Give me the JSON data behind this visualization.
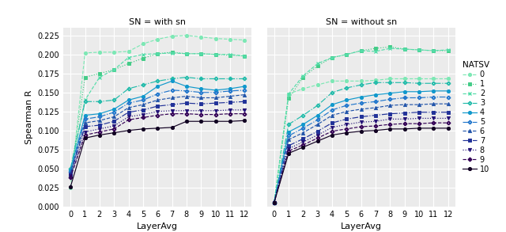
{
  "x": [
    0,
    1,
    2,
    3,
    4,
    5,
    6,
    7,
    8,
    9,
    10,
    11,
    12
  ],
  "title_left": "SN = with sn",
  "title_right": "SN = without sn",
  "xlabel": "LayerAvg",
  "ylabel": "Spearman R",
  "legend_title": "NATSV",
  "ylim": [
    0.0,
    0.235
  ],
  "yticks": [
    0.0,
    0.025,
    0.05,
    0.075,
    0.1,
    0.125,
    0.15,
    0.175,
    0.2,
    0.225
  ],
  "colors": [
    "#7de8b8",
    "#44cc88",
    "#66ddaa",
    "#22bbaa",
    "#1199cc",
    "#2277bb",
    "#2255aa",
    "#223399",
    "#221177",
    "#220055",
    "#110022"
  ],
  "markers": [
    "o",
    "s",
    "x",
    "P",
    "o",
    "P",
    "^",
    "s",
    "v",
    "P",
    "o"
  ],
  "linestyles": [
    "--",
    ":",
    "--",
    "-.",
    "-",
    "-.",
    "--",
    "-.",
    ":",
    "--",
    "-"
  ],
  "with_sn": [
    [
      0.025,
      0.202,
      0.203,
      0.203,
      0.204,
      0.214,
      0.22,
      0.224,
      0.225,
      0.223,
      0.221,
      0.22,
      0.219
    ],
    [
      0.04,
      0.17,
      0.175,
      0.18,
      0.188,
      0.195,
      0.201,
      0.203,
      0.201,
      0.201,
      0.2,
      0.199,
      0.198
    ],
    [
      0.048,
      0.14,
      0.17,
      0.18,
      0.196,
      0.2,
      0.201,
      0.202,
      0.201,
      0.201,
      0.2,
      0.2,
      0.198
    ],
    [
      0.05,
      0.138,
      0.138,
      0.14,
      0.155,
      0.16,
      0.165,
      0.168,
      0.17,
      0.168,
      0.168,
      0.168,
      0.168
    ],
    [
      0.048,
      0.12,
      0.122,
      0.128,
      0.14,
      0.145,
      0.158,
      0.165,
      0.158,
      0.155,
      0.153,
      0.155,
      0.158
    ],
    [
      0.046,
      0.115,
      0.118,
      0.124,
      0.136,
      0.14,
      0.148,
      0.153,
      0.152,
      0.15,
      0.15,
      0.152,
      0.153
    ],
    [
      0.044,
      0.11,
      0.113,
      0.118,
      0.13,
      0.134,
      0.14,
      0.143,
      0.145,
      0.143,
      0.143,
      0.145,
      0.147
    ],
    [
      0.042,
      0.105,
      0.107,
      0.112,
      0.124,
      0.127,
      0.132,
      0.134,
      0.136,
      0.135,
      0.136,
      0.137,
      0.138
    ],
    [
      0.04,
      0.098,
      0.102,
      0.106,
      0.118,
      0.121,
      0.125,
      0.126,
      0.126,
      0.126,
      0.126,
      0.127,
      0.127
    ],
    [
      0.038,
      0.094,
      0.098,
      0.102,
      0.114,
      0.117,
      0.12,
      0.122,
      0.122,
      0.121,
      0.121,
      0.122,
      0.122
    ],
    [
      0.026,
      0.09,
      0.094,
      0.097,
      0.1,
      0.102,
      0.103,
      0.104,
      0.112,
      0.112,
      0.112,
      0.112,
      0.113
    ]
  ],
  "without_sn": [
    [
      0.005,
      0.148,
      0.155,
      0.16,
      0.165,
      0.165,
      0.165,
      0.166,
      0.168,
      0.168,
      0.168,
      0.168,
      0.168
    ],
    [
      0.005,
      0.142,
      0.17,
      0.185,
      0.196,
      0.2,
      0.205,
      0.208,
      0.21,
      0.207,
      0.206,
      0.205,
      0.205
    ],
    [
      0.005,
      0.148,
      0.172,
      0.188,
      0.196,
      0.2,
      0.205,
      0.204,
      0.208,
      0.207,
      0.206,
      0.205,
      0.206
    ],
    [
      0.005,
      0.108,
      0.12,
      0.133,
      0.15,
      0.156,
      0.16,
      0.163,
      0.163,
      0.163,
      0.162,
      0.162,
      0.162
    ],
    [
      0.005,
      0.098,
      0.108,
      0.12,
      0.134,
      0.14,
      0.144,
      0.147,
      0.149,
      0.151,
      0.151,
      0.152,
      0.152
    ],
    [
      0.005,
      0.093,
      0.103,
      0.114,
      0.127,
      0.133,
      0.136,
      0.138,
      0.141,
      0.143,
      0.143,
      0.144,
      0.144
    ],
    [
      0.005,
      0.088,
      0.097,
      0.108,
      0.12,
      0.125,
      0.128,
      0.13,
      0.133,
      0.134,
      0.134,
      0.135,
      0.135
    ],
    [
      0.005,
      0.08,
      0.089,
      0.099,
      0.11,
      0.115,
      0.118,
      0.12,
      0.122,
      0.123,
      0.124,
      0.124,
      0.124
    ],
    [
      0.005,
      0.076,
      0.085,
      0.094,
      0.104,
      0.108,
      0.111,
      0.112,
      0.115,
      0.115,
      0.116,
      0.116,
      0.116
    ],
    [
      0.005,
      0.073,
      0.081,
      0.09,
      0.099,
      0.102,
      0.105,
      0.106,
      0.108,
      0.109,
      0.109,
      0.11,
      0.11
    ],
    [
      0.005,
      0.07,
      0.078,
      0.086,
      0.094,
      0.097,
      0.099,
      0.1,
      0.102,
      0.102,
      0.103,
      0.103,
      0.103
    ]
  ]
}
